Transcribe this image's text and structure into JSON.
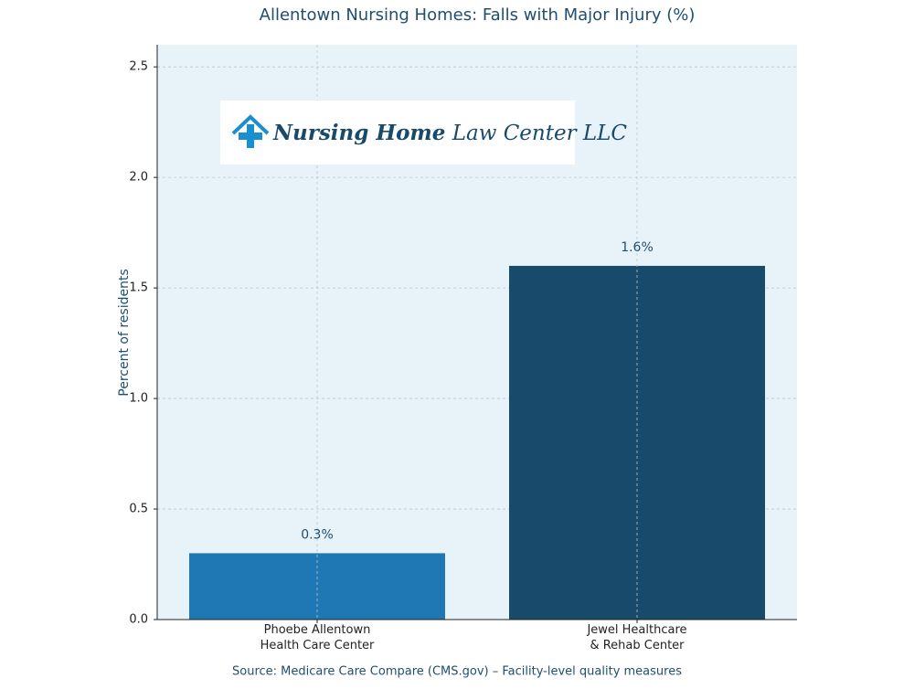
{
  "chart_data": {
    "type": "bar",
    "title": "Allentown Nursing Homes: Falls with Major Injury (%)",
    "y_label": "Percent of residents",
    "source": "Source: Medicare Care Compare (CMS.gov) – Facility-level quality measures",
    "categories": [
      "Phoebe Allentown\nHealth Care Center",
      "Jewel Healthcare\n& Rehab Center"
    ],
    "values": [
      0.3,
      1.6
    ],
    "value_labels": [
      "0.3%",
      "1.6%"
    ],
    "colors": [
      "#1f77b4",
      "#174a6b"
    ],
    "ylim": [
      0,
      2.6
    ],
    "yticks": [
      {
        "value": 0,
        "label": "0.0"
      },
      0.5,
      {
        "value": 1,
        "label": "1.0"
      },
      1.5,
      {
        "value": 2,
        "label": "2.0"
      },
      2.5
    ],
    "grid": true
  },
  "logo": {
    "bold": "Nursing Home",
    "rest": "Law Center LLC"
  }
}
